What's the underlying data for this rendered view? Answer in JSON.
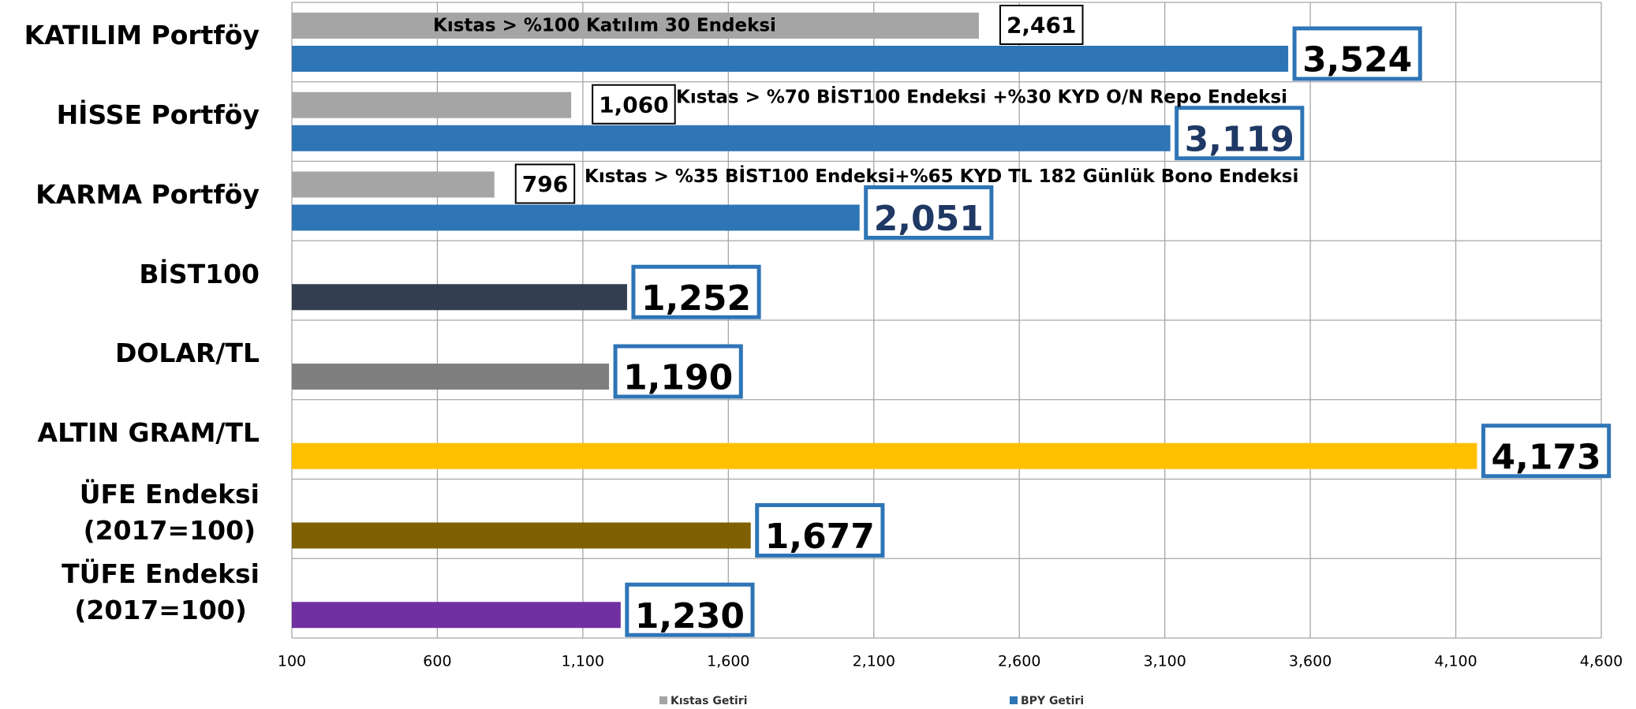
{
  "chart_data": {
    "type": "bar",
    "orientation": "horizontal",
    "categories": [
      "KATILIM Portföy",
      "HİSSE Portföy",
      "KARMA Portföy",
      "BİST100",
      "DOLAR/TL",
      "ALTIN GRAM/TL",
      "ÜFE Endeksi\n(2017=100)",
      "TÜFE Endeksi\n(2017=100)"
    ],
    "series": [
      {
        "name": "Kıstas Getiri",
        "color": "#a5a5a5",
        "values": [
          2461,
          1060,
          796,
          null,
          null,
          null,
          null,
          null
        ],
        "value_labels": [
          "2,461",
          "1,060",
          "796",
          null,
          null,
          null,
          null,
          null
        ]
      },
      {
        "name": "BPY Getiri",
        "color": "#2e75b6",
        "colors": [
          "#2e75b6",
          "#2e75b6",
          "#2e75b6",
          "#333f50",
          "#7f7f7f",
          "#ffc000",
          "#7f6000",
          "#7030a0"
        ],
        "values": [
          3524,
          3119,
          2051,
          1252,
          1190,
          4173,
          1677,
          1230
        ],
        "value_labels": [
          "3,524",
          "3,119",
          "2,051",
          "1,252",
          "1,190",
          "4,173",
          "1,677",
          "1,230"
        ]
      }
    ],
    "annotations": [
      "Kıstas > %100 Katılım 30 Endeksi",
      "Kıstas > %70 BİST100 Endeksi +%30 KYD O/N Repo Endeksi",
      "Kıstas > %35 BİST100 Endeksi+%65 KYD TL 182 Günlük Bono Endeksi"
    ],
    "xlim": [
      100,
      4600
    ],
    "xticks": [
      100,
      600,
      {
        "value": 1100,
        "label": "1,100"
      },
      {
        "value": 1600,
        "label": "1,600"
      },
      {
        "value": 2100,
        "label": "2,100"
      },
      {
        "value": 2600,
        "label": "2,600"
      },
      {
        "value": 3100,
        "label": "3,100"
      },
      {
        "value": 3600,
        "label": "3,600"
      },
      {
        "value": 4100,
        "label": "4,100"
      },
      {
        "value": 4600,
        "label": "4,600"
      }
    ],
    "grid": true,
    "legend": "bottom"
  }
}
